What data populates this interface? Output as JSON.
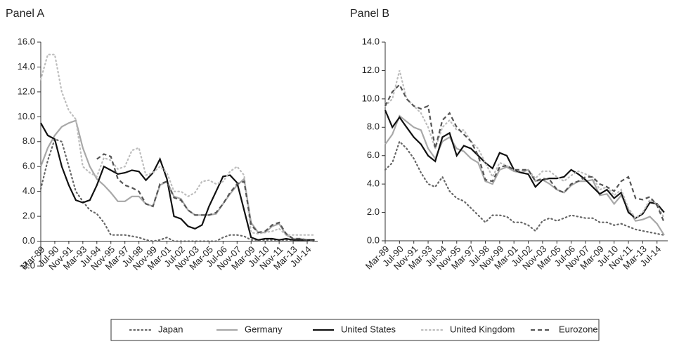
{
  "chart_data": [
    {
      "type": "line",
      "title": "Panel A",
      "categories": [
        "Mar-89",
        null,
        "Jul-90",
        null,
        "Nov-91",
        null,
        "Mar-93",
        null,
        "Jul-94",
        null,
        "Nov-95",
        null,
        "Mar-97",
        null,
        "Jul-98",
        null,
        "Nov-99",
        null,
        "Mar-01",
        null,
        "Jul-02",
        null,
        "Nov-03",
        null,
        "Mar-05",
        null,
        "Jul-06",
        null,
        "Nov-07",
        null,
        "Mar-09",
        null,
        "Jul-10",
        null,
        "Nov-11",
        null,
        "Mar-13",
        null,
        "Jul-14",
        null
      ],
      "ylim": [
        -2,
        16
      ],
      "yticks": [
        {
          "value": -2,
          "label": "-2.0"
        },
        {
          "value": 0,
          "label": "0.0"
        },
        {
          "value": 2,
          "label": "2.0"
        },
        {
          "value": 4,
          "label": "4.0"
        },
        {
          "value": 6,
          "label": "6.0"
        },
        {
          "value": 8,
          "label": "8.0"
        },
        {
          "value": 10,
          "label": "10.0"
        },
        {
          "value": 12,
          "label": "12.0"
        },
        {
          "value": 14,
          "label": "14.0"
        },
        {
          "value": 16,
          "label": "16.0"
        }
      ],
      "series": [
        {
          "name": "Japan",
          "color": "#666666",
          "dash": "dotted",
          "values": [
            4.2,
            6.5,
            8.2,
            8.0,
            6.0,
            4.0,
            3.2,
            2.5,
            2.2,
            1.5,
            0.5,
            0.5,
            0.5,
            0.4,
            0.3,
            0.1,
            0.0,
            0.1,
            0.3,
            0.0,
            0.0,
            0.0,
            0.0,
            0.0,
            0.0,
            0.0,
            0.3,
            0.5,
            0.5,
            0.4,
            0.1,
            0.1,
            0.1,
            0.1,
            0.1,
            0.1,
            0.1,
            0.1,
            0.1,
            0.1
          ]
        },
        {
          "name": "Germany",
          "color": "#a8a8a8",
          "dash": "solid",
          "values": [
            6.0,
            7.5,
            8.5,
            9.2,
            9.5,
            9.7,
            7.5,
            6.0,
            5.0,
            4.5,
            3.9,
            3.2,
            3.2,
            3.6,
            3.6,
            3.0,
            2.8,
            4.5,
            4.8,
            3.6,
            3.4,
            2.5,
            2.1,
            2.1,
            2.1,
            2.2,
            3.0,
            3.8,
            4.5,
            5.0,
            1.5,
            0.7,
            0.7,
            1.2,
            1.4,
            0.5,
            0.2,
            0.2,
            0.1,
            0.0
          ]
        },
        {
          "name": "United States",
          "color": "#111111",
          "dash": "solid",
          "values": [
            9.5,
            8.5,
            8.2,
            6.0,
            4.5,
            3.3,
            3.1,
            3.3,
            4.5,
            6.0,
            5.7,
            5.4,
            5.5,
            5.7,
            5.6,
            4.9,
            5.5,
            6.6,
            5.0,
            2.0,
            1.8,
            1.2,
            1.0,
            1.3,
            2.8,
            4.0,
            5.2,
            5.3,
            4.7,
            2.5,
            0.3,
            0.1,
            0.2,
            0.2,
            0.1,
            0.2,
            0.1,
            0.1,
            0.1,
            0.1
          ]
        },
        {
          "name": "United Kingdom",
          "color": "#bdbdbd",
          "dash": "dotted",
          "values": [
            13.0,
            15.0,
            15.0,
            12.0,
            10.5,
            9.8,
            6.0,
            5.5,
            5.2,
            6.7,
            6.5,
            5.8,
            6.0,
            7.3,
            7.5,
            5.3,
            5.5,
            6.0,
            5.5,
            4.0,
            4.0,
            3.6,
            3.9,
            4.8,
            4.9,
            4.6,
            4.8,
            5.6,
            6.0,
            5.3,
            0.7,
            0.6,
            0.7,
            0.8,
            1.0,
            0.5,
            0.5,
            0.5,
            0.5,
            0.5
          ]
        },
        {
          "name": "Eurozone",
          "color": "#555555",
          "dash": "dashed",
          "values": [
            null,
            null,
            null,
            null,
            null,
            null,
            null,
            null,
            6.6,
            7.0,
            6.8,
            5.0,
            4.5,
            4.3,
            4.0,
            3.0,
            2.8,
            4.6,
            4.8,
            3.5,
            3.3,
            2.5,
            2.1,
            2.1,
            2.1,
            2.3,
            3.0,
            3.9,
            4.6,
            4.8,
            1.3,
            0.7,
            0.8,
            1.3,
            1.5,
            0.6,
            0.2,
            0.2,
            0.1,
            0.0
          ]
        }
      ]
    },
    {
      "type": "line",
      "title": "Panel B",
      "categories": [
        "Mar-89",
        null,
        "Jul-90",
        null,
        "Nov-91",
        null,
        "Mar-93",
        null,
        "Jul-94",
        null,
        "Nov-95",
        null,
        "Mar-97",
        null,
        "Jul-98",
        null,
        "Nov-99",
        null,
        "Mar-01",
        null,
        "Jul-02",
        null,
        "Nov-03",
        null,
        "Mar-05",
        null,
        "Jul-06",
        null,
        "Nov-07",
        null,
        "Mar-09",
        null,
        "Jul-10",
        null,
        "Nov-11",
        null,
        "Mar-13",
        null,
        "Jul-14",
        null
      ],
      "ylim": [
        0,
        14
      ],
      "yticks": [
        {
          "value": 0,
          "label": "0.0"
        },
        {
          "value": 2,
          "label": "2.0"
        },
        {
          "value": 4,
          "label": "4.0"
        },
        {
          "value": 6,
          "label": "6.0"
        },
        {
          "value": 8,
          "label": "8.0"
        },
        {
          "value": 10,
          "label": "10.0"
        },
        {
          "value": 12,
          "label": "12.0"
        },
        {
          "value": 14,
          "label": "14.0"
        }
      ],
      "series": [
        {
          "name": "Japan",
          "color": "#666666",
          "dash": "dotted",
          "values": [
            5.0,
            5.5,
            7.0,
            6.5,
            5.8,
            4.8,
            4.0,
            3.8,
            4.5,
            3.5,
            3.0,
            2.8,
            2.3,
            1.8,
            1.3,
            1.8,
            1.8,
            1.7,
            1.3,
            1.3,
            1.1,
            0.7,
            1.4,
            1.6,
            1.4,
            1.6,
            1.8,
            1.7,
            1.6,
            1.6,
            1.3,
            1.3,
            1.1,
            1.2,
            1.0,
            0.8,
            0.7,
            0.6,
            0.5,
            0.4
          ]
        },
        {
          "name": "Germany",
          "color": "#a8a8a8",
          "dash": "solid",
          "values": [
            6.8,
            7.5,
            8.8,
            8.4,
            8.0,
            7.8,
            6.5,
            5.8,
            7.0,
            7.3,
            6.5,
            6.3,
            5.8,
            5.5,
            4.2,
            4.0,
            5.0,
            5.2,
            4.9,
            4.8,
            5.0,
            4.2,
            4.3,
            4.0,
            3.6,
            3.4,
            3.9,
            4.2,
            4.2,
            4.3,
            3.2,
            3.3,
            2.6,
            3.2,
            2.2,
            1.4,
            1.5,
            1.7,
            1.2,
            0.4
          ]
        },
        {
          "name": "United States",
          "color": "#111111",
          "dash": "solid",
          "values": [
            9.2,
            8.0,
            8.7,
            8.0,
            7.3,
            6.8,
            6.0,
            5.6,
            7.3,
            7.6,
            6.0,
            6.7,
            6.5,
            6.0,
            5.5,
            5.1,
            6.2,
            6.0,
            5.0,
            4.8,
            4.7,
            3.8,
            4.3,
            4.4,
            4.4,
            4.5,
            5.0,
            4.7,
            4.3,
            3.8,
            3.3,
            3.6,
            3.0,
            3.4,
            2.0,
            1.6,
            1.9,
            2.7,
            2.6,
            2.0
          ]
        },
        {
          "name": "United Kingdom",
          "color": "#bdbdbd",
          "dash": "dotted",
          "values": [
            9.5,
            10.0,
            12.0,
            10.0,
            9.5,
            9.0,
            8.0,
            6.5,
            8.0,
            8.5,
            7.8,
            7.8,
            7.0,
            6.5,
            5.5,
            4.5,
            5.5,
            5.3,
            5.0,
            4.9,
            5.0,
            4.4,
            4.9,
            4.9,
            4.5,
            4.2,
            4.6,
            4.9,
            4.7,
            4.5,
            3.6,
            3.8,
            3.2,
            3.6,
            2.3,
            1.6,
            2.0,
            2.9,
            2.6,
            1.6
          ]
        },
        {
          "name": "Eurozone",
          "color": "#555555",
          "dash": "dashed",
          "values": [
            9.5,
            10.5,
            11.0,
            10.0,
            9.5,
            9.3,
            9.5,
            6.5,
            8.5,
            9.0,
            8.0,
            7.5,
            7.0,
            6.0,
            4.3,
            4.2,
            5.2,
            5.3,
            5.0,
            5.0,
            5.0,
            4.2,
            4.4,
            4.3,
            3.6,
            3.4,
            4.0,
            4.2,
            4.5,
            4.5,
            4.0,
            3.8,
            3.5,
            4.2,
            4.5,
            3.0,
            2.9,
            3.1,
            2.5,
            1.3
          ]
        }
      ]
    }
  ]
}
